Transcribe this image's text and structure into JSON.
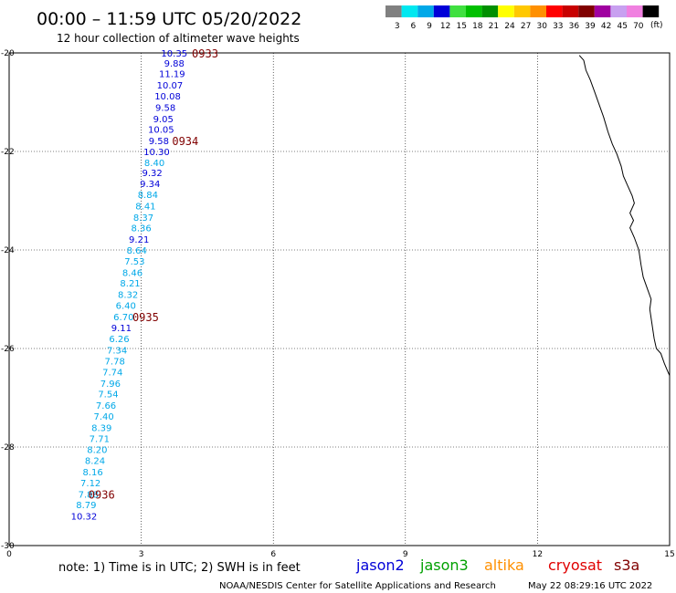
{
  "header": {
    "title": "00:00 – 11:59 UTC 05/20/2022",
    "subtitle": "12 hour collection of altimeter wave heights"
  },
  "legend": {
    "unit": "(ft)",
    "bins": [
      {
        "label": "3",
        "color": "#808080"
      },
      {
        "label": "6",
        "color": "#00e8f0"
      },
      {
        "label": "9",
        "color": "#00a8e8"
      },
      {
        "label": "12",
        "color": "#0000d8"
      },
      {
        "label": "15",
        "color": "#40e040"
      },
      {
        "label": "18",
        "color": "#00c000"
      },
      {
        "label": "21",
        "color": "#009000"
      },
      {
        "label": "24",
        "color": "#ffff00"
      },
      {
        "label": "27",
        "color": "#ffc800"
      },
      {
        "label": "30",
        "color": "#ff9000"
      },
      {
        "label": "33",
        "color": "#ff0000"
      },
      {
        "label": "36",
        "color": "#c80000"
      },
      {
        "label": "39",
        "color": "#800000"
      },
      {
        "label": "42",
        "color": "#a000a0"
      },
      {
        "label": "45",
        "color": "#c8a0f0"
      },
      {
        "label": "70",
        "color": "#f080e0"
      },
      {
        "label": "",
        "color": "#000000"
      }
    ]
  },
  "map": {
    "x_range": [
      0,
      15
    ],
    "y_range": [
      -20,
      -30
    ],
    "x_ticks": [
      {
        "value": 0,
        "label": "0"
      },
      {
        "value": 3,
        "label": "3"
      },
      {
        "value": 6,
        "label": "6"
      },
      {
        "value": 9,
        "label": "9"
      },
      {
        "value": 12,
        "label": "12"
      },
      {
        "value": 15,
        "label": "15"
      }
    ],
    "y_ticks": [
      {
        "value": -20,
        "label": "-20"
      },
      {
        "value": -22,
        "label": "-22"
      },
      {
        "value": -24,
        "label": "-24"
      },
      {
        "value": -26,
        "label": "-26"
      },
      {
        "value": -28,
        "label": "-28"
      },
      {
        "value": -30,
        "label": "-30"
      }
    ],
    "colors": {
      "light": "#00a8e8",
      "dark": "#0000d8",
      "time": "#800000",
      "grid": "#000000",
      "coast": "#000000"
    },
    "coastline": [
      [
        12.95,
        -20.05
      ],
      [
        13.05,
        -20.15
      ],
      [
        13.1,
        -20.35
      ],
      [
        13.2,
        -20.55
      ],
      [
        13.3,
        -20.8
      ],
      [
        13.4,
        -21.05
      ],
      [
        13.5,
        -21.3
      ],
      [
        13.6,
        -21.6
      ],
      [
        13.7,
        -21.85
      ],
      [
        13.8,
        -22.05
      ],
      [
        13.9,
        -22.3
      ],
      [
        13.95,
        -22.5
      ],
      [
        14.05,
        -22.7
      ],
      [
        14.15,
        -22.9
      ],
      [
        14.2,
        -23.05
      ],
      [
        14.15,
        -23.15
      ],
      [
        14.1,
        -23.25
      ],
      [
        14.18,
        -23.4
      ],
      [
        14.1,
        -23.55
      ],
      [
        14.2,
        -23.75
      ],
      [
        14.3,
        -24.0
      ],
      [
        14.35,
        -24.3
      ],
      [
        14.4,
        -24.55
      ],
      [
        14.5,
        -24.8
      ],
      [
        14.58,
        -25.0
      ],
      [
        14.55,
        -25.2
      ],
      [
        14.6,
        -25.5
      ],
      [
        14.65,
        -25.8
      ],
      [
        14.7,
        -26.0
      ],
      [
        14.8,
        -26.1
      ],
      [
        14.88,
        -26.3
      ],
      [
        14.95,
        -26.45
      ],
      [
        15.0,
        -26.55
      ]
    ],
    "labels": [
      {
        "lon": 3.75,
        "lat": -20.0,
        "text": "10.35",
        "tone": "dark"
      },
      {
        "lon": 3.75,
        "lat": -20.2,
        "text": "9.88",
        "tone": "dark"
      },
      {
        "lon": 3.7,
        "lat": -20.42,
        "text": "11.19",
        "tone": "dark"
      },
      {
        "lon": 3.65,
        "lat": -20.65,
        "text": "10.07",
        "tone": "dark"
      },
      {
        "lon": 3.6,
        "lat": -20.87,
        "text": "10.08",
        "tone": "dark"
      },
      {
        "lon": 3.55,
        "lat": -21.1,
        "text": "9.58",
        "tone": "dark"
      },
      {
        "lon": 3.5,
        "lat": -21.33,
        "text": "9.05",
        "tone": "dark"
      },
      {
        "lon": 3.45,
        "lat": -21.55,
        "text": "10.05",
        "tone": "dark"
      },
      {
        "lon": 3.4,
        "lat": -21.78,
        "text": "9.58",
        "tone": "dark"
      },
      {
        "lon": 3.35,
        "lat": -22.0,
        "text": "10.30",
        "tone": "dark"
      },
      {
        "lon": 3.3,
        "lat": -22.22,
        "text": "8.40",
        "tone": "light"
      },
      {
        "lon": 3.25,
        "lat": -22.43,
        "text": "9.32",
        "tone": "dark"
      },
      {
        "lon": 3.2,
        "lat": -22.65,
        "text": "9.34",
        "tone": "dark"
      },
      {
        "lon": 3.15,
        "lat": -22.87,
        "text": "8.84",
        "tone": "light"
      },
      {
        "lon": 3.1,
        "lat": -23.1,
        "text": "8.41",
        "tone": "light"
      },
      {
        "lon": 3.05,
        "lat": -23.33,
        "text": "8.37",
        "tone": "light"
      },
      {
        "lon": 3.0,
        "lat": -23.55,
        "text": "8.36",
        "tone": "light"
      },
      {
        "lon": 2.95,
        "lat": -23.78,
        "text": "9.21",
        "tone": "dark"
      },
      {
        "lon": 2.9,
        "lat": -24.0,
        "text": "8.64",
        "tone": "light"
      },
      {
        "lon": 2.85,
        "lat": -24.22,
        "text": "7.53",
        "tone": "light"
      },
      {
        "lon": 2.8,
        "lat": -24.45,
        "text": "8.46",
        "tone": "light"
      },
      {
        "lon": 2.75,
        "lat": -24.67,
        "text": "8.21",
        "tone": "light"
      },
      {
        "lon": 2.7,
        "lat": -24.9,
        "text": "8.32",
        "tone": "light"
      },
      {
        "lon": 2.65,
        "lat": -25.12,
        "text": "6.40",
        "tone": "light"
      },
      {
        "lon": 2.6,
        "lat": -25.35,
        "text": "6.70",
        "tone": "light"
      },
      {
        "lon": 2.55,
        "lat": -25.57,
        "text": "9.11",
        "tone": "dark"
      },
      {
        "lon": 2.5,
        "lat": -25.8,
        "text": "6.26",
        "tone": "light"
      },
      {
        "lon": 2.45,
        "lat": -26.03,
        "text": "7.34",
        "tone": "light"
      },
      {
        "lon": 2.4,
        "lat": -26.25,
        "text": "7.78",
        "tone": "light"
      },
      {
        "lon": 2.35,
        "lat": -26.47,
        "text": "7.74",
        "tone": "light"
      },
      {
        "lon": 2.3,
        "lat": -26.7,
        "text": "7.96",
        "tone": "light"
      },
      {
        "lon": 2.25,
        "lat": -26.92,
        "text": "7.54",
        "tone": "light"
      },
      {
        "lon": 2.2,
        "lat": -27.15,
        "text": "7.66",
        "tone": "light"
      },
      {
        "lon": 2.15,
        "lat": -27.37,
        "text": "7.40",
        "tone": "light"
      },
      {
        "lon": 2.1,
        "lat": -27.6,
        "text": "8.39",
        "tone": "light"
      },
      {
        "lon": 2.05,
        "lat": -27.82,
        "text": "7.71",
        "tone": "light"
      },
      {
        "lon": 2.0,
        "lat": -28.05,
        "text": "8.20",
        "tone": "light"
      },
      {
        "lon": 1.95,
        "lat": -28.27,
        "text": "8.24",
        "tone": "light"
      },
      {
        "lon": 1.9,
        "lat": -28.5,
        "text": "8.16",
        "tone": "light"
      },
      {
        "lon": 1.85,
        "lat": -28.72,
        "text": "7.12",
        "tone": "light"
      },
      {
        "lon": 1.8,
        "lat": -28.95,
        "text": "7.88",
        "tone": "light"
      },
      {
        "lon": 1.75,
        "lat": -29.17,
        "text": "8.79",
        "tone": "light"
      },
      {
        "lon": 1.7,
        "lat": -29.4,
        "text": "10.32",
        "tone": "dark"
      }
    ],
    "time_labels": [
      {
        "lon": 4.45,
        "lat": -20.0,
        "text": "0933"
      },
      {
        "lon": 4.0,
        "lat": -21.78,
        "text": "0934"
      },
      {
        "lon": 3.1,
        "lat": -25.35,
        "text": "0935"
      },
      {
        "lon": 2.1,
        "lat": -28.95,
        "text": "0936"
      }
    ]
  },
  "footer": {
    "note": "note: 1) Time is in UTC; 2) SWH is in feet",
    "satellites": [
      {
        "name": "jason2",
        "color": "#0000d8"
      },
      {
        "name": "jason3",
        "color": "#00a000"
      },
      {
        "name": "altika",
        "color": "#ff9000"
      },
      {
        "name": "cryosat",
        "color": "#e00000"
      },
      {
        "name": "s3a",
        "color": "#800000"
      }
    ],
    "credit": "NOAA/NESDIS Center for Satellite Applications and Research",
    "timestamp": "May 22 08:29:16 UTC 2022"
  }
}
